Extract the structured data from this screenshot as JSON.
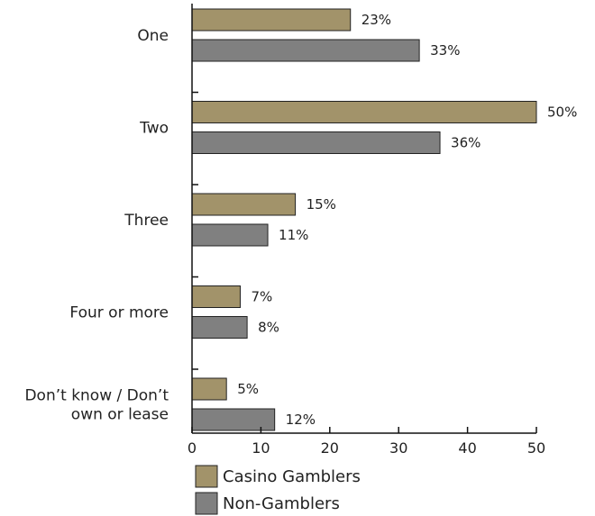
{
  "chart_data": {
    "type": "bar",
    "orientation": "horizontal",
    "categories": [
      [
        "One"
      ],
      [
        "Two"
      ],
      [
        "Three"
      ],
      [
        "Four or more"
      ],
      [
        "Don’t know / Don’t",
        "own or lease"
      ]
    ],
    "series": [
      {
        "name": "Casino Gamblers",
        "values": [
          23,
          50,
          15,
          7,
          5
        ],
        "labels": [
          "23%",
          "50%",
          "15%",
          "7%",
          "5%"
        ],
        "color": "#a2936a"
      },
      {
        "name": "Non-Gamblers",
        "values": [
          33,
          36,
          11,
          8,
          12
        ],
        "labels": [
          "33%",
          "36%",
          "11%",
          "8%",
          "12%"
        ],
        "color": "#808080"
      }
    ],
    "xlim": [
      0,
      50
    ],
    "xticks": [
      0,
      10,
      20,
      30,
      40,
      50
    ],
    "xtick_labels": [
      "0",
      "10",
      "20",
      "30",
      "40",
      "50"
    ],
    "grid": false,
    "legend_position": "bottom-left"
  }
}
